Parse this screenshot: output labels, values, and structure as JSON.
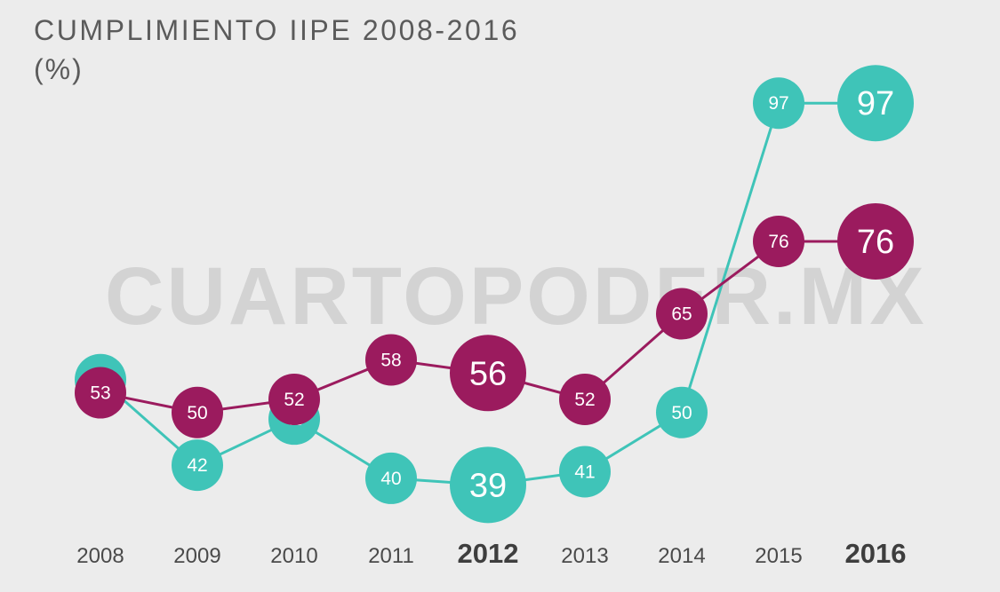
{
  "title": "CUMPLIMIENTO IIPE 2008-2016",
  "subtitle": "(%)",
  "watermark": "CUARTOPODER.MX",
  "chart_data": {
    "type": "line",
    "title": "CUMPLIMIENTO IIPE 2008-2016",
    "subtitle": "(%)",
    "categories": [
      "2008",
      "2009",
      "2010",
      "2011",
      "2012",
      "2013",
      "2014",
      "2015",
      "2016"
    ],
    "highlighted_categories": [
      "2012",
      "2016"
    ],
    "ylim": [
      35,
      100
    ],
    "grid": false,
    "legend": "none",
    "series": [
      {
        "color": "#3fc4b8",
        "values": [
          55,
          42,
          49,
          40,
          39,
          41,
          50,
          97,
          97
        ]
      },
      {
        "color": "#9b1b5e",
        "values": [
          53,
          50,
          52,
          58,
          56,
          52,
          65,
          76,
          76
        ]
      }
    ]
  }
}
